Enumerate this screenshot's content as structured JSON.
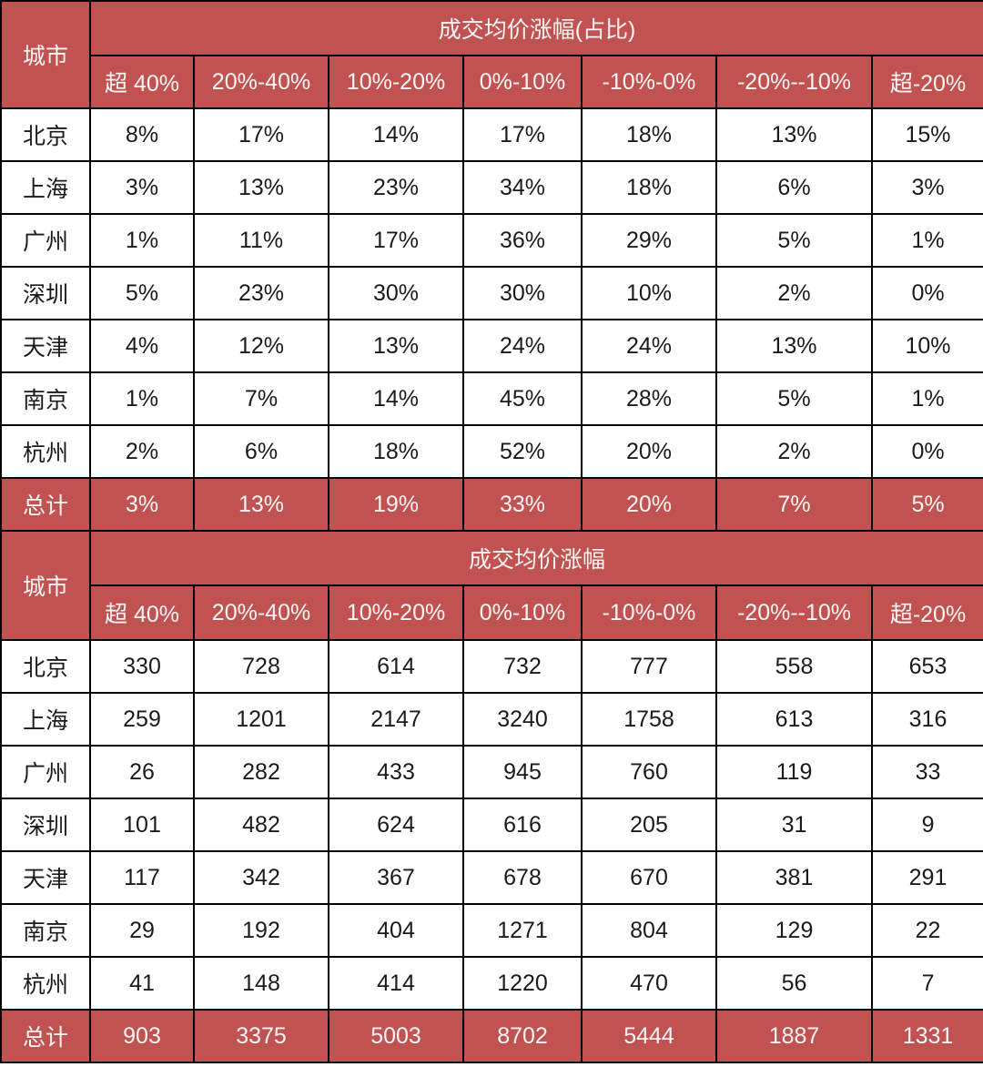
{
  "accent_color": "#c05351",
  "chart_data": [
    {
      "type": "table",
      "title": "成交均价涨幅(占比)",
      "row_header": "城市",
      "columns": [
        "超 40%",
        "20%-40%",
        "10%-20%",
        "0%-10%",
        "-10%-0%",
        "-20%--10%",
        "超-20%"
      ],
      "rows": [
        {
          "city": "北京",
          "values": [
            "8%",
            "17%",
            "14%",
            "17%",
            "18%",
            "13%",
            "15%"
          ]
        },
        {
          "city": "上海",
          "values": [
            "3%",
            "13%",
            "23%",
            "34%",
            "18%",
            "6%",
            "3%"
          ]
        },
        {
          "city": "广州",
          "values": [
            "1%",
            "11%",
            "17%",
            "36%",
            "29%",
            "5%",
            "1%"
          ]
        },
        {
          "city": "深圳",
          "values": [
            "5%",
            "23%",
            "30%",
            "30%",
            "10%",
            "2%",
            "0%"
          ]
        },
        {
          "city": "天津",
          "values": [
            "4%",
            "12%",
            "13%",
            "24%",
            "24%",
            "13%",
            "10%"
          ]
        },
        {
          "city": "南京",
          "values": [
            "1%",
            "7%",
            "14%",
            "45%",
            "28%",
            "5%",
            "1%"
          ]
        },
        {
          "city": "杭州",
          "values": [
            "2%",
            "6%",
            "18%",
            "52%",
            "20%",
            "2%",
            "0%"
          ]
        }
      ],
      "total": {
        "city": "总计",
        "values": [
          "3%",
          "13%",
          "19%",
          "33%",
          "20%",
          "7%",
          "5%"
        ]
      }
    },
    {
      "type": "table",
      "title": "成交均价涨幅",
      "row_header": "城市",
      "columns": [
        "超 40%",
        "20%-40%",
        "10%-20%",
        "0%-10%",
        "-10%-0%",
        "-20%--10%",
        "超-20%"
      ],
      "rows": [
        {
          "city": "北京",
          "values": [
            "330",
            "728",
            "614",
            "732",
            "777",
            "558",
            "653"
          ]
        },
        {
          "city": "上海",
          "values": [
            "259",
            "1201",
            "2147",
            "3240",
            "1758",
            "613",
            "316"
          ]
        },
        {
          "city": "广州",
          "values": [
            "26",
            "282",
            "433",
            "945",
            "760",
            "119",
            "33"
          ]
        },
        {
          "city": "深圳",
          "values": [
            "101",
            "482",
            "624",
            "616",
            "205",
            "31",
            "9"
          ]
        },
        {
          "city": "天津",
          "values": [
            "117",
            "342",
            "367",
            "678",
            "670",
            "381",
            "291"
          ]
        },
        {
          "city": "南京",
          "values": [
            "29",
            "192",
            "404",
            "1271",
            "804",
            "129",
            "22"
          ]
        },
        {
          "city": "杭州",
          "values": [
            "41",
            "148",
            "414",
            "1220",
            "470",
            "56",
            "7"
          ]
        }
      ],
      "total": {
        "city": "总计",
        "values": [
          "903",
          "3375",
          "5003",
          "8702",
          "5444",
          "1887",
          "1331"
        ]
      }
    }
  ]
}
